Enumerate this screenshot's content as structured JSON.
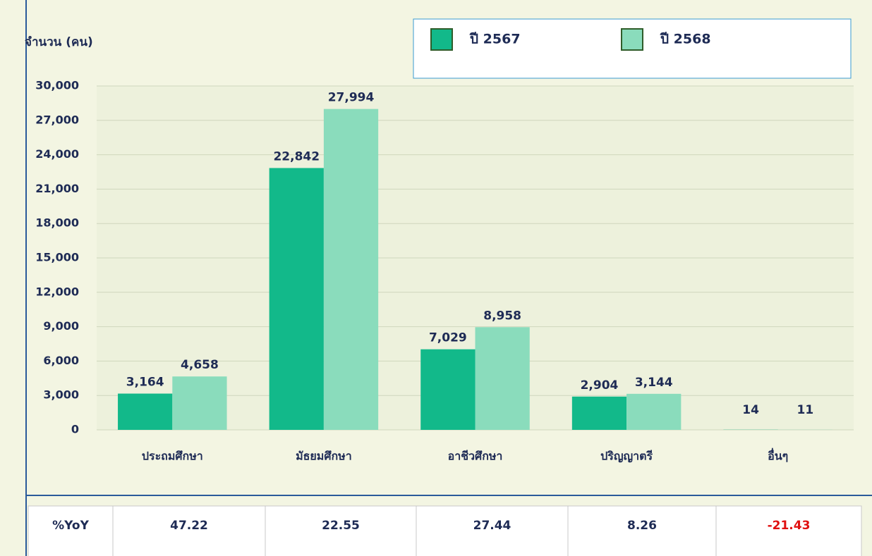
{
  "chart_data": {
    "type": "bar",
    "ylabel": "จำนวน (คน)",
    "categories": [
      "ประถมศึกษา",
      "มัธยมศึกษา",
      "อาชีวศึกษา",
      "ปริญญาตรี",
      "อื่นๆ"
    ],
    "series": [
      {
        "name": "ปี 2567",
        "color": "#12b98a",
        "values": [
          3164,
          22842,
          7029,
          2904,
          14
        ],
        "value_labels": [
          "3,164",
          "22,842",
          "7,029",
          "2,904",
          "14"
        ]
      },
      {
        "name": "ปี 2568",
        "color": "#8adcbc",
        "values": [
          4658,
          27994,
          8958,
          3144,
          11
        ],
        "value_labels": [
          "4,658",
          "27,994",
          "8,958",
          "3,144",
          "11"
        ]
      }
    ],
    "ylim": [
      0,
      30000
    ],
    "yticks": [
      0,
      {
        "value": 3000,
        "label": "3,000"
      },
      {
        "value": 6000,
        "label": "6,000"
      },
      {
        "value": 9000,
        "label": "9,000"
      },
      {
        "value": 12000,
        "label": "12,000"
      },
      {
        "value": 15000,
        "label": "15,000"
      },
      {
        "value": 18000,
        "label": "18,000"
      },
      {
        "value": 21000,
        "label": "21,000"
      },
      {
        "value": 24000,
        "label": "24,000"
      },
      {
        "value": 27000,
        "label": "27,000"
      },
      {
        "value": 30000,
        "label": "30,000"
      }
    ],
    "grid": true,
    "legend": "top-right"
  },
  "table": {
    "rows": [
      [
        "%YoY",
        "47.22",
        "22.55",
        "27.44",
        "8.26",
        "-21.43"
      ]
    ]
  }
}
